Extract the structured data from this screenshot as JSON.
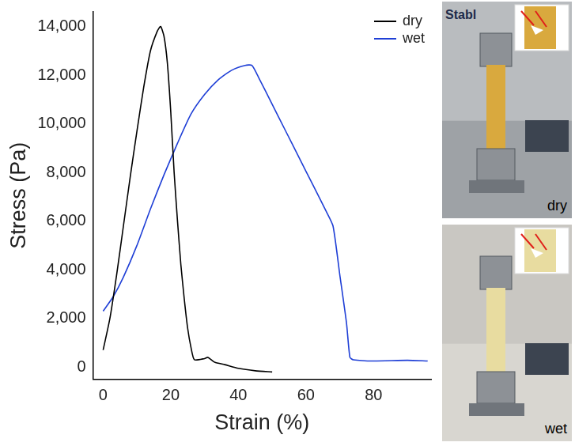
{
  "chart_data": {
    "type": "line",
    "x_label": "Strain (%)",
    "y_label": "Stress (Pa)",
    "xlim": [
      -3,
      97
    ],
    "xticks": [
      0,
      20,
      40,
      60,
      80
    ],
    "ylim": [
      -500,
      14600
    ],
    "yticks": [
      0,
      2000,
      4000,
      6000,
      8000,
      10000,
      12000,
      14000
    ],
    "grid": false,
    "legend": "upper right",
    "series": [
      {
        "name": "dry",
        "color": "#000000",
        "line_style": "solid",
        "x": [
          0,
          2,
          4,
          6,
          8,
          10,
          12,
          14,
          16,
          17,
          18,
          19,
          20,
          21,
          22,
          23,
          24,
          25,
          26,
          27,
          30,
          31,
          33,
          36,
          40,
          45,
          50
        ],
        "values": [
          700,
          2000,
          3800,
          5800,
          7800,
          9700,
          11500,
          13000,
          13800,
          14000,
          13600,
          12500,
          10500,
          8000,
          6000,
          4200,
          2800,
          1600,
          800,
          300,
          350,
          400,
          200,
          100,
          -50,
          -150,
          -200
        ]
      },
      {
        "name": "wet",
        "color": "#1f3fd6",
        "line_style": "solid",
        "x": [
          0,
          3,
          6,
          10,
          14,
          18,
          22,
          26,
          30,
          34,
          38,
          42,
          44,
          46,
          50,
          54,
          58,
          62,
          66,
          68,
          70,
          72,
          73,
          74,
          80,
          90,
          96
        ],
        "values": [
          2300,
          2900,
          3700,
          5000,
          6500,
          7900,
          9200,
          10400,
          11200,
          11800,
          12200,
          12400,
          12400,
          11900,
          10800,
          9700,
          8600,
          7500,
          6400,
          5800,
          3800,
          1800,
          400,
          300,
          250,
          280,
          250
        ]
      }
    ]
  },
  "photos": [
    {
      "label": "dry",
      "text": "Stabl"
    },
    {
      "label": "wet"
    }
  ]
}
